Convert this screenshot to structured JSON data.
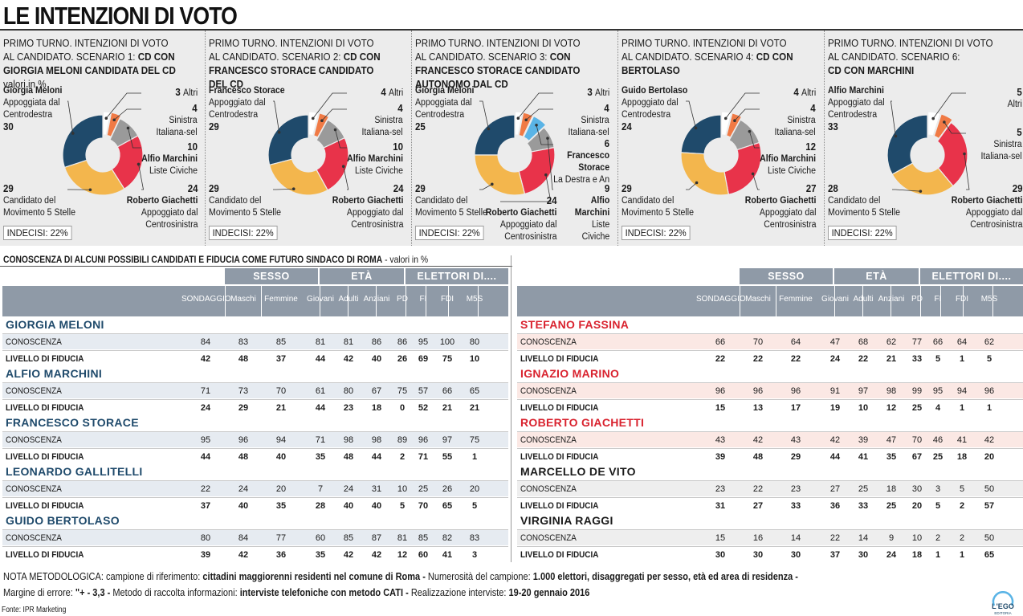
{
  "title": "LE INTENZIONI DI VOTO",
  "colors": {
    "navy": "#1f4a6b",
    "yellow": "#f3b64d",
    "red": "#e8334a",
    "gray": "#9a9a9a",
    "orange": "#f07a45",
    "blue": "#5ab4e6",
    "panel_bg": "#ececec",
    "header_bg": "#8f9aa7"
  },
  "chart_data": [
    {
      "type": "pie",
      "title_plain": "PRIMO TURNO. INTENZIONI DI VOTO\nAL CANDIDATO. SCENARIO 1: ",
      "title_bold": "CD CON GIORGIA MELONI CANDIDATA DEL CD",
      "title_suffix": "  valori in %",
      "undecided": "INDECISI: 22%",
      "slices": [
        {
          "name": "Giorgia Meloni",
          "desc": "Appoggiata dal\nCentrodestra",
          "value": 30,
          "color": "#1f4a6b"
        },
        {
          "name": "Altri",
          "desc": "",
          "value": 3,
          "color": "#ffffff"
        },
        {
          "name": "Sinistra\nItaliana-sel",
          "desc": "",
          "value": 4,
          "color": "#f07a45"
        },
        {
          "name": "Alfio Marchini",
          "desc": "Liste Civiche",
          "value": 10,
          "color": "#9a9a9a"
        },
        {
          "name": "Roberto Giachetti",
          "desc": "Appoggiato dal\nCentrosinistra",
          "value": 24,
          "color": "#e8334a"
        },
        {
          "name": "Candidato del\nMovimento 5 Stelle",
          "desc": "",
          "value": 29,
          "color": "#f3b64d"
        }
      ]
    },
    {
      "type": "pie",
      "title_plain": "PRIMO TURNO. INTENZIONI DI VOTO\nAL CANDIDATO. SCENARIO 2: ",
      "title_bold": "CD CON FRANCESCO STORACE CANDIDATO DEL CD",
      "title_suffix": "",
      "undecided": "INDECISI: 22%",
      "slices": [
        {
          "name": "Francesco Storace",
          "desc": "Appoggiato dal\nCentrodestra",
          "value": 29,
          "color": "#1f4a6b"
        },
        {
          "name": "Altri",
          "desc": "",
          "value": 4,
          "color": "#ffffff"
        },
        {
          "name": "Sinistra\nItaliana-sel",
          "desc": "",
          "value": 4,
          "color": "#f07a45"
        },
        {
          "name": "Alfio Marchini",
          "desc": "Liste Civiche",
          "value": 10,
          "color": "#9a9a9a"
        },
        {
          "name": "Roberto Giachetti",
          "desc": "Appoggiato dal\nCentrosinistra",
          "value": 24,
          "color": "#e8334a"
        },
        {
          "name": "Candidato del\nMovimento 5 Stelle",
          "desc": "",
          "value": 29,
          "color": "#f3b64d"
        }
      ]
    },
    {
      "type": "pie",
      "title_plain": "PRIMO TURNO. INTENZIONI DI VOTO\nAL CANDIDATO. SCENARIO 3: ",
      "title_bold": "CON FRANCESCO STORACE CANDIDATO AUTONOMO DAL CD",
      "title_suffix": "",
      "undecided": "INDECISI: 22%",
      "slices": [
        {
          "name": "Giorgia Meloni",
          "desc": "Appoggiata dal\nCentrodestra",
          "value": 25,
          "color": "#1f4a6b"
        },
        {
          "name": "Altri",
          "desc": "",
          "value": 3,
          "color": "#ffffff"
        },
        {
          "name": "Sinistra\nItaliana-sel",
          "desc": "",
          "value": 4,
          "color": "#f07a45"
        },
        {
          "name": "Francesco\nStorace",
          "desc": "La Destra e An",
          "value": 6,
          "color": "#5ab4e6"
        },
        {
          "name": "Alfio\nMarchini",
          "desc": "Liste\nCiviche",
          "value": 9,
          "color": "#9a9a9a"
        },
        {
          "name": "Roberto Giachetti",
          "desc": "Appoggiato dal\nCentrosinistra",
          "value": 24,
          "color": "#e8334a"
        },
        {
          "name": "Candidato del\nMovimento 5 Stelle",
          "desc": "",
          "value": 29,
          "color": "#f3b64d"
        }
      ]
    },
    {
      "type": "pie",
      "title_plain": "PRIMO TURNO. INTENZIONI DI VOTO\nAL CANDIDATO. SCENARIO 4: ",
      "title_bold": "CD CON BERTOLASO",
      "title_suffix": "",
      "undecided": "INDECISI: 22%",
      "slices": [
        {
          "name": "Guido Bertolaso",
          "desc": "Appoggiato dal\nCentrodestra",
          "value": 24,
          "color": "#1f4a6b"
        },
        {
          "name": "Altri",
          "desc": "",
          "value": 4,
          "color": "#ffffff"
        },
        {
          "name": "Sinistra\nItaliana-sel",
          "desc": "",
          "value": 4,
          "color": "#f07a45"
        },
        {
          "name": "Alfio Marchini",
          "desc": "Liste Civiche",
          "value": 12,
          "color": "#9a9a9a"
        },
        {
          "name": "Roberto Giachetti",
          "desc": "Appoggiato dal\nCentrosinistra",
          "value": 27,
          "color": "#e8334a"
        },
        {
          "name": "Candidato del\nMovimento 5 Stelle",
          "desc": "",
          "value": 29,
          "color": "#f3b64d"
        }
      ]
    },
    {
      "type": "pie",
      "title_plain": "PRIMO TURNO. INTENZIONI DI VOTO\nAL CANDIDATO. SCENARIO 6:\n",
      "title_bold": "CD CON MARCHINI",
      "title_suffix": "",
      "undecided": "INDECISI: 22%",
      "slices": [
        {
          "name": "Alfio Marchini",
          "desc": "Appoggiato dal\nCentrodestra",
          "value": 33,
          "color": "#1f4a6b"
        },
        {
          "name": "Altri",
          "desc": "",
          "value": 5,
          "color": "#ffffff"
        },
        {
          "name": "Sinistra\nItaliana-sel",
          "desc": "",
          "value": 5,
          "color": "#f07a45"
        },
        {
          "name": "Roberto Giachetti",
          "desc": "Appoggiato dal\nCentrosinistra",
          "value": 29,
          "color": "#e8334a"
        },
        {
          "name": "Candidato del\nMovimento 5 Stelle",
          "desc": "",
          "value": 28,
          "color": "#f3b64d"
        }
      ]
    },
    {
      "type": "table",
      "title_bold": "CONOSCENZA DI ALCUNI POSSIBILI CANDIDATI E FIDUCIA COME FUTURO SINDACO DI ROMA",
      "title_suffix": " - valori in %",
      "groups": [
        "SESSO",
        "ETÀ",
        "ELETTORI DI...."
      ],
      "columns": [
        "SONDAGGIO",
        "Maschi",
        "Femmine",
        "Giovani",
        "Adulti",
        "Anziani",
        "PD",
        "FI",
        "FDI",
        "M5S"
      ],
      "row_labels": [
        "CONOSCENZA",
        "LIVELLO DI FIDUCIA"
      ],
      "candidates": [
        {
          "name": "GIORGIA MELONI",
          "color": "#1f4a6b",
          "conoscenza": [
            84,
            83,
            85,
            81,
            81,
            86,
            86,
            95,
            100,
            80
          ],
          "fiducia": [
            42,
            48,
            37,
            44,
            42,
            40,
            26,
            69,
            75,
            10
          ]
        },
        {
          "name": "ALFIO MARCHINI",
          "color": "#1f4a6b",
          "conoscenza": [
            71,
            73,
            70,
            61,
            80,
            67,
            75,
            57,
            66,
            65
          ],
          "fiducia": [
            24,
            29,
            21,
            44,
            23,
            18,
            0,
            52,
            21,
            21
          ]
        },
        {
          "name": "FRANCESCO STORACE",
          "color": "#1f4a6b",
          "conoscenza": [
            95,
            96,
            94,
            71,
            98,
            98,
            89,
            96,
            97,
            75
          ],
          "fiducia": [
            44,
            48,
            40,
            35,
            48,
            44,
            2,
            71,
            55,
            1
          ]
        },
        {
          "name": "LEONARDO GALLITELLI",
          "color": "#1f4a6b",
          "conoscenza": [
            22,
            24,
            20,
            7,
            24,
            31,
            10,
            25,
            26,
            20
          ],
          "fiducia": [
            37,
            40,
            35,
            28,
            40,
            40,
            5,
            70,
            65,
            5
          ]
        },
        {
          "name": "GUIDO BERTOLASO",
          "color": "#1f4a6b",
          "conoscenza": [
            80,
            84,
            77,
            60,
            85,
            87,
            81,
            85,
            82,
            83
          ],
          "fiducia": [
            39,
            42,
            36,
            35,
            42,
            42,
            12,
            60,
            41,
            3
          ]
        },
        {
          "name": "STEFANO FASSINA",
          "color": "#d9232f",
          "conoscenza": [
            66,
            70,
            64,
            47,
            68,
            62,
            77,
            66,
            64,
            62
          ],
          "fiducia": [
            22,
            22,
            22,
            24,
            22,
            21,
            33,
            5,
            1,
            5
          ]
        },
        {
          "name": "IGNAZIO MARINO",
          "color": "#d9232f",
          "conoscenza": [
            96,
            96,
            96,
            91,
            97,
            98,
            99,
            95,
            94,
            96
          ],
          "fiducia": [
            15,
            13,
            17,
            19,
            10,
            12,
            25,
            4,
            1,
            1
          ]
        },
        {
          "name": "ROBERTO GIACHETTI",
          "color": "#d9232f",
          "conoscenza": [
            43,
            42,
            43,
            42,
            39,
            47,
            70,
            46,
            41,
            42
          ],
          "fiducia": [
            39,
            48,
            29,
            44,
            41,
            35,
            67,
            25,
            18,
            20
          ]
        },
        {
          "name": "MARCELLO DE VITO",
          "color": "#1a1a1a",
          "conoscenza": [
            23,
            22,
            23,
            27,
            25,
            18,
            30,
            3,
            5,
            50
          ],
          "fiducia": [
            31,
            27,
            33,
            36,
            33,
            25,
            20,
            5,
            2,
            57
          ]
        },
        {
          "name": "VIRGINIA RAGGI",
          "color": "#1a1a1a",
          "conoscenza": [
            15,
            16,
            14,
            22,
            14,
            9,
            10,
            2,
            2,
            50
          ],
          "fiducia": [
            30,
            30,
            30,
            37,
            30,
            24,
            18,
            1,
            1,
            65
          ]
        }
      ]
    }
  ],
  "note": {
    "line1_a": "NOTA METODOLOGICA: campione di riferimento: ",
    "line1_b": "cittadini maggiorenni residenti nel comune di Roma - ",
    "line1_c": "Numerosità del campione: ",
    "line1_d": "1.000 elettori, disaggregati per sesso, età ed area di residenza -",
    "line2_a": "Margine di errore: ",
    "line2_b": "\"+ - 3,3 -",
    "line2_c": "  Metodo di raccolta informazioni: ",
    "line2_d": "interviste telefoniche con metodo CATI - ",
    "line2_e": "Realizzazione interviste: ",
    "line2_f": "19-20 gennaio 2016"
  },
  "source": "Fonte: IPR Marketing",
  "logo": {
    "line1": "L'EGO",
    "line2": "EDITORIA"
  }
}
